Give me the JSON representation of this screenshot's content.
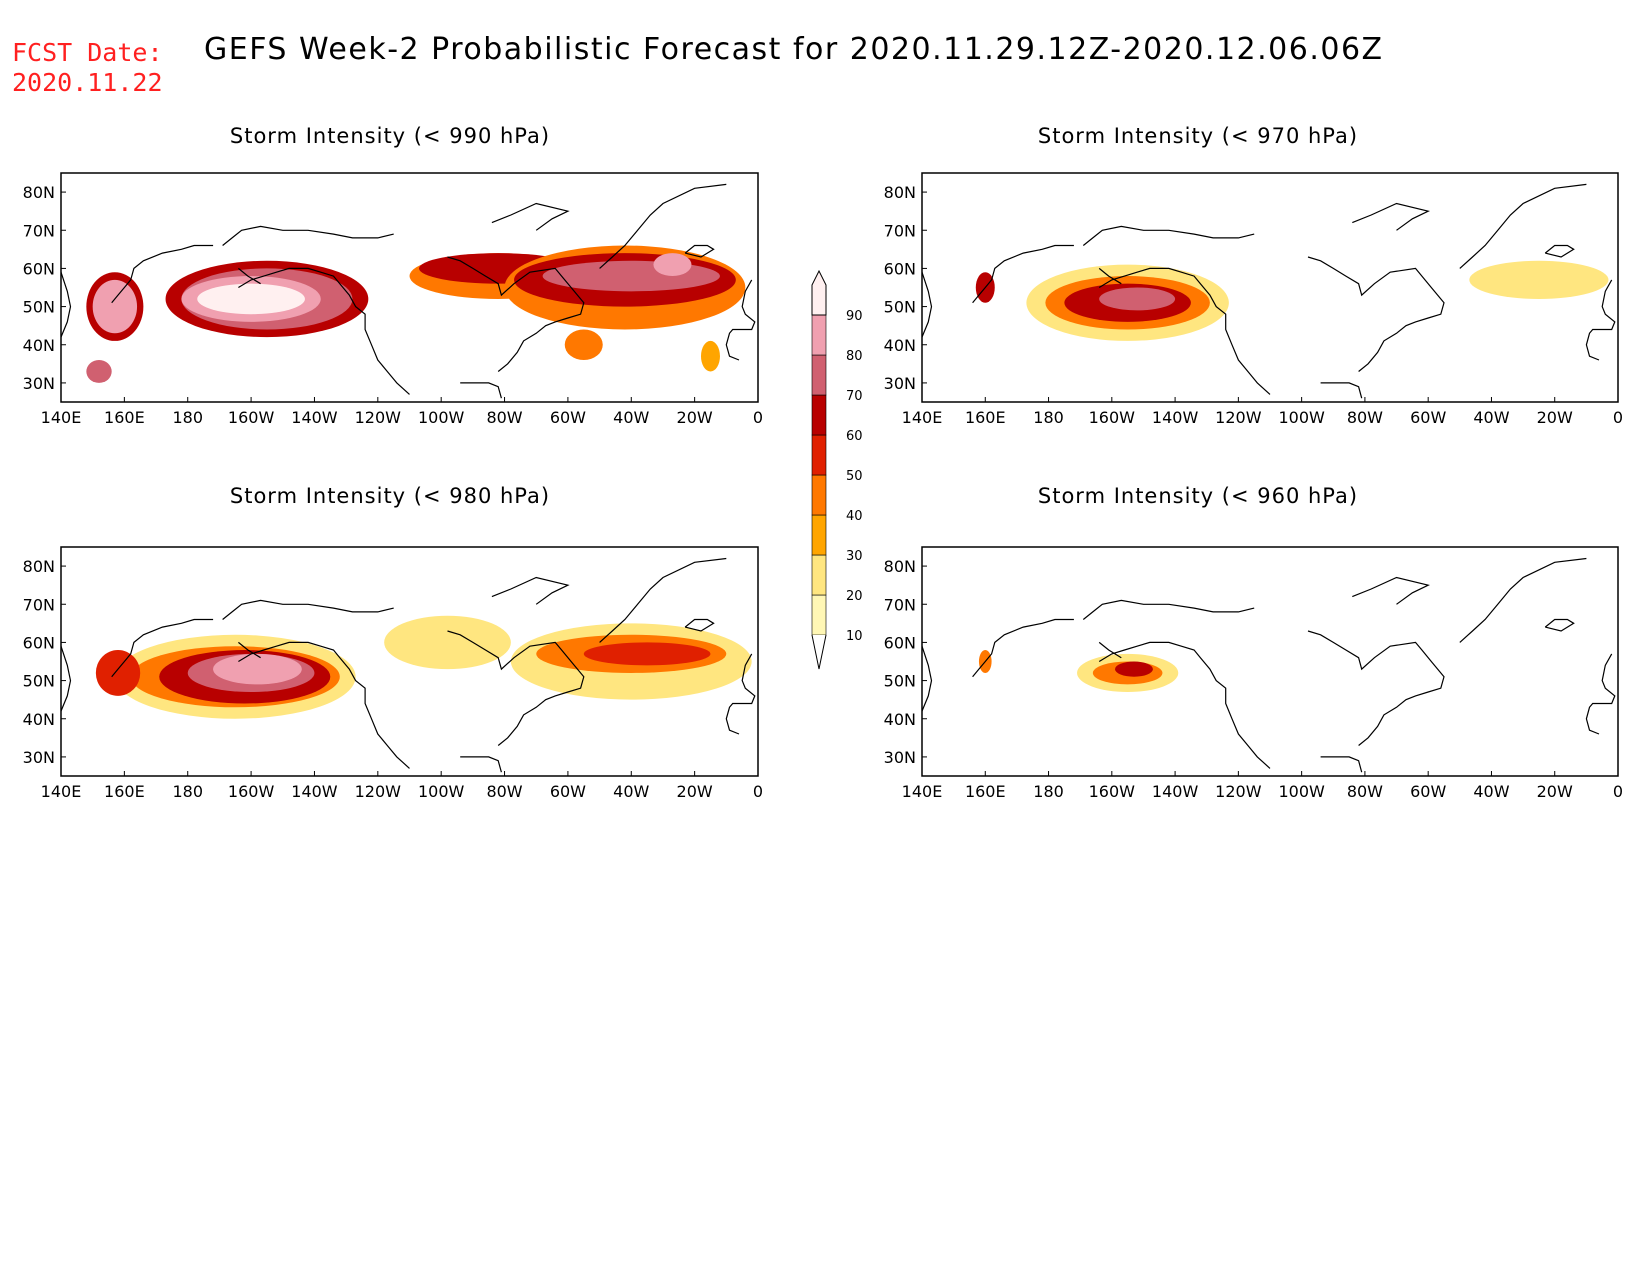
{
  "header": {
    "fcst_label": "FCST Date:",
    "fcst_date": "2020.11.22",
    "title": "GEFS Week-2 Probabilistic Forecast for 2020.11.29.12Z-2020.12.06.06Z"
  },
  "axes": {
    "x_ticks": [
      "140E",
      "160E",
      "180",
      "160W",
      "140W",
      "120W",
      "100W",
      "80W",
      "60W",
      "40W",
      "20W",
      "0"
    ],
    "y_ticks": [
      "80N",
      "70N",
      "60N",
      "50N",
      "40N",
      "30N"
    ],
    "lon_range": [
      140,
      360
    ],
    "lat_range": [
      25,
      85
    ]
  },
  "colorbar": {
    "levels": [
      "10",
      "20",
      "30",
      "40",
      "50",
      "60",
      "70",
      "80",
      "90"
    ],
    "colors": [
      "#fff7b5",
      "#ffe680",
      "#ffa500",
      "#ff7800",
      "#e02000",
      "#b80000",
      "#d06070",
      "#f0a0b0",
      "#fff0f0"
    ]
  },
  "panels": [
    {
      "title": "Storm Intensity (< 990 hPa)",
      "blobs": [
        {
          "lon": 205,
          "lat": 52,
          "rx": 32,
          "ry": 10,
          "level": 5
        },
        {
          "lon": 205,
          "lat": 52,
          "rx": 27,
          "ry": 8,
          "level": 6
        },
        {
          "lon": 200,
          "lat": 52,
          "rx": 22,
          "ry": 6,
          "level": 7
        },
        {
          "lon": 200,
          "lat": 52,
          "rx": 17,
          "ry": 4,
          "level": 8
        },
        {
          "lon": 157,
          "lat": 50,
          "rx": 9,
          "ry": 9,
          "level": 5
        },
        {
          "lon": 157,
          "lat": 50,
          "rx": 7,
          "ry": 7,
          "level": 7
        },
        {
          "lon": 278,
          "lat": 58,
          "rx": 28,
          "ry": 6,
          "level": 3
        },
        {
          "lon": 278,
          "lat": 60,
          "rx": 25,
          "ry": 4,
          "level": 5
        },
        {
          "lon": 318,
          "lat": 55,
          "rx": 38,
          "ry": 11,
          "level": 3
        },
        {
          "lon": 318,
          "lat": 57,
          "rx": 35,
          "ry": 7,
          "level": 5
        },
        {
          "lon": 320,
          "lat": 58,
          "rx": 28,
          "ry": 4,
          "level": 6
        },
        {
          "lon": 333,
          "lat": 61,
          "rx": 6,
          "ry": 3,
          "level": 7
        },
        {
          "lon": 305,
          "lat": 40,
          "rx": 6,
          "ry": 4,
          "level": 3
        },
        {
          "lon": 345,
          "lat": 37,
          "rx": 3,
          "ry": 4,
          "level": 2
        },
        {
          "lon": 152,
          "lat": 33,
          "rx": 4,
          "ry": 3,
          "level": 6
        }
      ]
    },
    {
      "title": "Storm Intensity (< 970 hPa)",
      "blobs": [
        {
          "lon": 205,
          "lat": 51,
          "rx": 32,
          "ry": 10,
          "level": 1
        },
        {
          "lon": 205,
          "lat": 51,
          "rx": 26,
          "ry": 7,
          "level": 3
        },
        {
          "lon": 205,
          "lat": 51,
          "rx": 20,
          "ry": 5,
          "level": 5
        },
        {
          "lon": 208,
          "lat": 52,
          "rx": 12,
          "ry": 3,
          "level": 6
        },
        {
          "lon": 160,
          "lat": 55,
          "rx": 3,
          "ry": 4,
          "level": 5
        },
        {
          "lon": 335,
          "lat": 57,
          "rx": 22,
          "ry": 5,
          "level": 1
        }
      ]
    },
    {
      "title": "Storm Intensity (< 980 hPa)",
      "blobs": [
        {
          "lon": 195,
          "lat": 51,
          "rx": 38,
          "ry": 11,
          "level": 1
        },
        {
          "lon": 195,
          "lat": 51,
          "rx": 33,
          "ry": 8,
          "level": 3
        },
        {
          "lon": 198,
          "lat": 51,
          "rx": 27,
          "ry": 7,
          "level": 5
        },
        {
          "lon": 200,
          "lat": 52,
          "rx": 20,
          "ry": 5,
          "level": 6
        },
        {
          "lon": 202,
          "lat": 53,
          "rx": 14,
          "ry": 4,
          "level": 7
        },
        {
          "lon": 158,
          "lat": 52,
          "rx": 7,
          "ry": 6,
          "level": 4
        },
        {
          "lon": 262,
          "lat": 60,
          "rx": 20,
          "ry": 7,
          "level": 1
        },
        {
          "lon": 320,
          "lat": 55,
          "rx": 38,
          "ry": 10,
          "level": 1
        },
        {
          "lon": 320,
          "lat": 57,
          "rx": 30,
          "ry": 5,
          "level": 3
        },
        {
          "lon": 325,
          "lat": 57,
          "rx": 20,
          "ry": 3,
          "level": 4
        }
      ]
    },
    {
      "title": "Storm Intensity (< 960 hPa)",
      "blobs": [
        {
          "lon": 205,
          "lat": 52,
          "rx": 16,
          "ry": 5,
          "level": 1
        },
        {
          "lon": 205,
          "lat": 52,
          "rx": 11,
          "ry": 3,
          "level": 3
        },
        {
          "lon": 207,
          "lat": 53,
          "rx": 6,
          "ry": 2,
          "level": 5
        },
        {
          "lon": 160,
          "lat": 55,
          "rx": 2,
          "ry": 3,
          "level": 3
        }
      ]
    }
  ]
}
